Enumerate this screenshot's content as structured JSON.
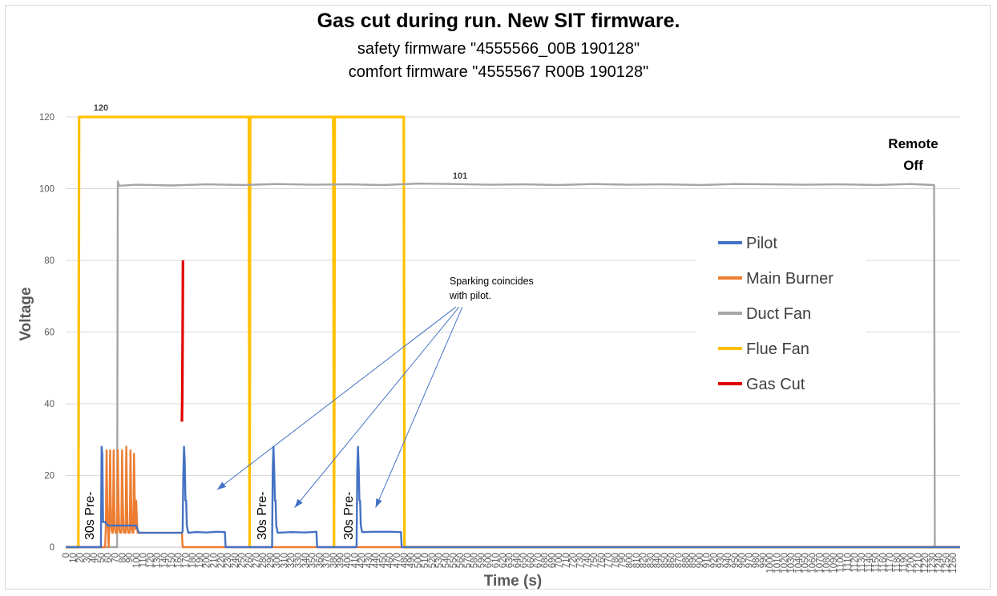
{
  "chart_data": {
    "type": "line",
    "title": "Gas cut during run. New SIT firmware.",
    "subtitle_1": "safety firmware \"4555566_00B 190128\"",
    "subtitle_2": "comfort firmware \"4555567 R00B 190128\"",
    "xlabel": "Time (s)",
    "ylabel": "Voltage",
    "xlim": [
      0,
      1270
    ],
    "ylim": [
      0,
      120
    ],
    "x_ticks": [
      0,
      10,
      20,
      30,
      40,
      50,
      60,
      70,
      80,
      90,
      100,
      110,
      120,
      130,
      140,
      150,
      160,
      170,
      180,
      190,
      200,
      210,
      220,
      230,
      240,
      250,
      260,
      270,
      280,
      290,
      300,
      310,
      320,
      330,
      340,
      350,
      360,
      370,
      380,
      390,
      400,
      410,
      420,
      430,
      440,
      450,
      460,
      470,
      480,
      490,
      500,
      510,
      520,
      530,
      540,
      550,
      560,
      570,
      580,
      590,
      600,
      610,
      620,
      630,
      640,
      650,
      660,
      670,
      680,
      690,
      700,
      710,
      720,
      730,
      740,
      750,
      760,
      770,
      780,
      790,
      800,
      810,
      820,
      830,
      840,
      850,
      860,
      870,
      880,
      890,
      900,
      910,
      920,
      930,
      940,
      950,
      960,
      970,
      980,
      990,
      1000,
      1010,
      1020,
      1030,
      1040,
      1050,
      1060,
      1070,
      1080,
      1090,
      1100,
      1110,
      1120,
      1130,
      1140,
      1150,
      1160,
      1170,
      1180,
      1190,
      1200,
      1210,
      1220,
      1230,
      1240,
      1250,
      1260
    ],
    "y_ticks": [
      0,
      20,
      40,
      60,
      80,
      100,
      120
    ],
    "grid": "horizontal",
    "legend_position": "right",
    "series": [
      {
        "name": "Pilot",
        "color": "#4472C4",
        "points": [
          [
            0,
            0
          ],
          [
            50,
            0
          ],
          [
            51,
            28
          ],
          [
            52,
            26
          ],
          [
            53,
            7
          ],
          [
            56,
            7
          ],
          [
            60,
            6
          ],
          [
            80,
            6
          ],
          [
            100,
            6
          ],
          [
            104,
            4
          ],
          [
            165,
            4
          ],
          [
            166,
            4.5
          ],
          [
            167,
            20
          ],
          [
            168,
            28
          ],
          [
            169,
            24
          ],
          [
            170,
            13
          ],
          [
            171,
            13
          ],
          [
            172,
            6
          ],
          [
            174,
            4
          ],
          [
            185,
            4.2
          ],
          [
            200,
            4.1
          ],
          [
            215,
            4.3
          ],
          [
            226,
            4.2
          ],
          [
            227,
            0
          ],
          [
            290,
            0
          ],
          [
            293,
            0
          ],
          [
            294,
            22
          ],
          [
            295,
            28
          ],
          [
            296,
            22
          ],
          [
            297,
            13
          ],
          [
            298,
            13
          ],
          [
            299,
            6
          ],
          [
            301,
            4
          ],
          [
            320,
            4.2
          ],
          [
            340,
            4.1
          ],
          [
            356,
            4.3
          ],
          [
            357,
            0
          ],
          [
            410,
            0
          ],
          [
            413,
            0
          ],
          [
            414,
            22
          ],
          [
            415,
            28
          ],
          [
            416,
            22
          ],
          [
            417,
            13
          ],
          [
            418,
            13
          ],
          [
            419,
            6
          ],
          [
            421,
            4.2
          ],
          [
            440,
            4.3
          ],
          [
            460,
            4.3
          ],
          [
            476,
            4.2
          ],
          [
            477,
            0
          ],
          [
            1270,
            0
          ]
        ]
      },
      {
        "name": "Main Burner",
        "color": "#ED7D31",
        "points": [
          [
            0,
            0
          ],
          [
            56,
            0
          ],
          [
            57,
            6
          ],
          [
            58,
            27
          ],
          [
            59,
            13
          ],
          [
            60,
            5
          ],
          [
            61,
            0
          ],
          [
            62,
            6
          ],
          [
            63,
            27
          ],
          [
            64,
            13
          ],
          [
            65,
            5
          ],
          [
            66,
            4
          ],
          [
            67,
            4
          ],
          [
            68,
            27
          ],
          [
            69,
            13
          ],
          [
            70,
            5
          ],
          [
            71,
            4
          ],
          [
            73,
            4
          ],
          [
            74,
            27
          ],
          [
            75,
            13
          ],
          [
            76,
            5
          ],
          [
            77,
            4
          ],
          [
            79,
            4
          ],
          [
            80,
            27
          ],
          [
            81,
            13
          ],
          [
            82,
            5
          ],
          [
            83,
            4
          ],
          [
            85,
            4
          ],
          [
            86,
            28
          ],
          [
            87,
            13
          ],
          [
            88,
            5
          ],
          [
            89,
            4
          ],
          [
            91,
            4
          ],
          [
            92,
            27
          ],
          [
            93,
            13
          ],
          [
            94,
            5
          ],
          [
            95,
            4
          ],
          [
            96,
            4
          ],
          [
            97,
            26
          ],
          [
            98,
            13
          ],
          [
            99,
            5
          ],
          [
            100,
            13
          ],
          [
            101,
            8
          ],
          [
            102,
            4
          ],
          [
            110,
            4
          ],
          [
            165,
            4
          ],
          [
            166,
            0
          ],
          [
            1270,
            0
          ]
        ]
      },
      {
        "name": "Duct Fan",
        "color": "#A5A5A5",
        "points": [
          [
            0,
            0
          ],
          [
            73,
            0
          ],
          [
            74,
            102
          ],
          [
            76,
            100.8
          ],
          [
            100,
            101.1
          ],
          [
            150,
            100.9
          ],
          [
            200,
            101.2
          ],
          [
            250,
            101.0
          ],
          [
            300,
            101.3
          ],
          [
            350,
            101.1
          ],
          [
            400,
            101.2
          ],
          [
            450,
            101.0
          ],
          [
            500,
            101.4
          ],
          [
            550,
            101.3
          ],
          [
            600,
            101.1
          ],
          [
            650,
            101.2
          ],
          [
            700,
            101.0
          ],
          [
            750,
            101.3
          ],
          [
            800,
            101.1
          ],
          [
            850,
            101.2
          ],
          [
            900,
            101.0
          ],
          [
            950,
            101.3
          ],
          [
            1000,
            101.2
          ],
          [
            1050,
            101.1
          ],
          [
            1100,
            101.2
          ],
          [
            1150,
            101.0
          ],
          [
            1200,
            101.3
          ],
          [
            1233,
            101.0
          ],
          [
            1234,
            0
          ],
          [
            1270,
            0
          ]
        ]
      },
      {
        "name": "Flue Fan",
        "color": "#FFC000",
        "points": [
          [
            0,
            0
          ],
          [
            18,
            0
          ],
          [
            19,
            120
          ],
          [
            260,
            120
          ],
          [
            261,
            0
          ],
          [
            262,
            120
          ],
          [
            380,
            120
          ],
          [
            381,
            0
          ],
          [
            382,
            120
          ],
          [
            480,
            120
          ],
          [
            481,
            0
          ],
          [
            1270,
            0
          ]
        ]
      },
      {
        "name": "Gas Cut",
        "color": "#E00000",
        "points": [
          [
            165,
            35
          ],
          [
            165.5,
            42
          ],
          [
            166,
            60
          ],
          [
            166.5,
            80
          ]
        ]
      }
    ],
    "value_labels": [
      {
        "x": 50,
        "y": 120,
        "text": "120"
      },
      {
        "x": 560,
        "y": 101,
        "text": "101"
      }
    ],
    "annotation": {
      "text_line_1": "Sparking coincides",
      "text_line_2": "with pilot.",
      "x": 570,
      "y": 67,
      "arrow_targets": [
        [
          215,
          16
        ],
        [
          325,
          11
        ],
        [
          440,
          11
        ]
      ]
    },
    "phase_labels": [
      {
        "x": 35,
        "text": "30s Pre-"
      },
      {
        "x": 280,
        "text": "30s Pre-"
      },
      {
        "x": 403,
        "text": "30s Pre-"
      }
    ],
    "remote_off": {
      "x": 1233,
      "line_1": "Remote",
      "line_2": "Off"
    }
  }
}
